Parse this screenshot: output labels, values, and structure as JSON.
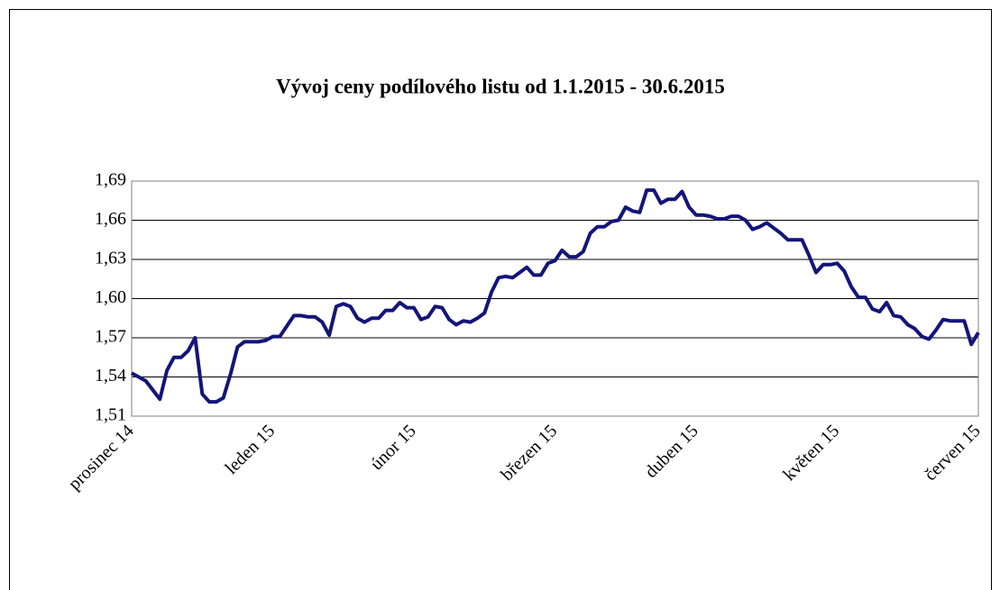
{
  "chart_data": {
    "type": "line",
    "title": "Vývoj ceny podílového listu od 1.1.2015 - 30.6.2015",
    "categories": [
      "prosinec 14",
      null,
      null,
      null,
      null,
      null,
      null,
      null,
      null,
      null,
      null,
      null,
      null,
      null,
      null,
      null,
      null,
      null,
      null,
      null,
      "leden 15",
      null,
      null,
      null,
      null,
      null,
      null,
      null,
      null,
      null,
      null,
      null,
      null,
      null,
      null,
      null,
      null,
      null,
      null,
      null,
      "únor 15",
      null,
      null,
      null,
      null,
      null,
      null,
      null,
      null,
      null,
      null,
      null,
      null,
      null,
      null,
      null,
      null,
      null,
      null,
      null,
      "březen 15",
      null,
      null,
      null,
      null,
      null,
      null,
      null,
      null,
      null,
      null,
      null,
      null,
      null,
      null,
      null,
      null,
      null,
      null,
      null,
      "duben 15",
      null,
      null,
      null,
      null,
      null,
      null,
      null,
      null,
      null,
      null,
      null,
      null,
      null,
      null,
      null,
      null,
      null,
      null,
      null,
      "květen 15",
      null,
      null,
      null,
      null,
      null,
      null,
      null,
      null,
      null,
      null,
      null,
      null,
      null,
      null,
      null,
      null,
      null,
      null,
      null,
      "červen 15"
    ],
    "values": [
      1.543,
      1.54,
      1.537,
      1.53,
      1.523,
      1.545,
      1.555,
      1.555,
      1.56,
      1.57,
      1.527,
      1.521,
      1.521,
      1.524,
      1.542,
      1.563,
      1.567,
      1.567,
      1.567,
      1.568,
      1.571,
      1.571,
      1.579,
      1.587,
      1.587,
      1.586,
      1.586,
      1.582,
      1.572,
      1.594,
      1.596,
      1.594,
      1.585,
      1.582,
      1.585,
      1.585,
      1.591,
      1.591,
      1.597,
      1.593,
      1.593,
      1.584,
      1.586,
      1.594,
      1.593,
      1.584,
      1.58,
      1.583,
      1.582,
      1.585,
      1.589,
      1.605,
      1.616,
      1.617,
      1.616,
      1.62,
      1.624,
      1.618,
      1.618,
      1.627,
      1.629,
      1.637,
      1.632,
      1.632,
      1.636,
      1.65,
      1.655,
      1.655,
      1.659,
      1.66,
      1.67,
      1.667,
      1.666,
      1.683,
      1.683,
      1.673,
      1.676,
      1.676,
      1.682,
      1.67,
      1.664,
      1.664,
      1.663,
      1.661,
      1.661,
      1.663,
      1.663,
      1.66,
      1.653,
      1.655,
      1.658,
      1.654,
      1.65,
      1.645,
      1.645,
      1.645,
      1.633,
      1.62,
      1.626,
      1.626,
      1.627,
      1.621,
      1.609,
      1.601,
      1.601,
      1.592,
      1.59,
      1.597,
      1.587,
      1.586,
      1.58,
      1.577,
      1.571,
      1.569,
      1.576,
      1.584,
      1.583,
      1.583,
      1.583,
      1.565,
      1.574
    ],
    "color": "#14147a",
    "ylim": [
      1.51,
      1.69
    ],
    "yticks": [
      {
        "value": 1.51,
        "label": "1,51"
      },
      {
        "value": 1.54,
        "label": "1,54"
      },
      {
        "value": 1.57,
        "label": "1,57"
      },
      {
        "value": 1.6,
        "label": "1,60"
      },
      {
        "value": 1.63,
        "label": "1,63"
      },
      {
        "value": 1.66,
        "label": "1,66"
      },
      {
        "value": 1.69,
        "label": "1,69"
      }
    ],
    "grid": true
  }
}
